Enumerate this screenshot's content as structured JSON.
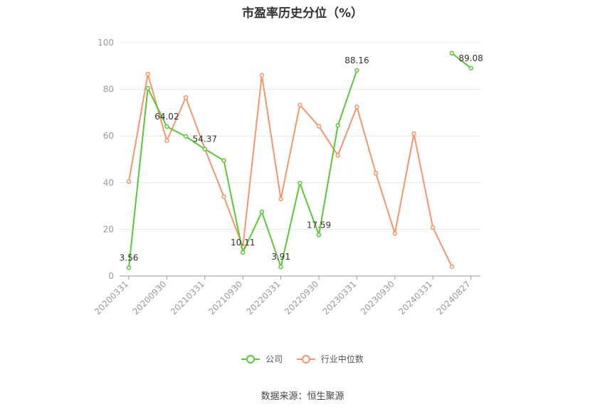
{
  "chart_data": {
    "type": "line",
    "title": "市盈率历史分位（%）",
    "ylim": [
      0,
      100
    ],
    "yticks": [
      0,
      20,
      40,
      60,
      80,
      100
    ],
    "x": [
      "20200331",
      "20200630",
      "20200930",
      "20201231",
      "20210331",
      "20210630",
      "20210930",
      "20211231",
      "20220331",
      "20220630",
      "20220930",
      "20221231",
      "20230331",
      "20230630",
      "20230930",
      "20231231",
      "20240331",
      "20240630",
      "20240827"
    ],
    "xtick_labels": [
      "20200331",
      "20200930",
      "20210331",
      "20210930",
      "20220331",
      "20220930",
      "20230331",
      "20230930",
      "20240331",
      "20240827"
    ],
    "series": [
      {
        "name": "公司",
        "color": "#5ac737",
        "values": [
          3.56,
          80.5,
          64.02,
          59.8,
          54.37,
          49.5,
          10.11,
          27.5,
          3.91,
          39.8,
          17.59,
          64.5,
          88.16,
          null,
          null,
          null,
          null,
          95.5,
          89.08
        ],
        "labels": [
          "3.56",
          null,
          "64.02",
          null,
          "54.37",
          null,
          "10.11",
          null,
          "3.91",
          null,
          "17.59",
          null,
          "88.16",
          null,
          null,
          null,
          null,
          null,
          "89.08"
        ]
      },
      {
        "name": "行业中位数",
        "color": "#f5956b",
        "values": [
          40.5,
          86.5,
          58.0,
          76.5,
          54.5,
          34.0,
          12.5,
          86.0,
          33.0,
          73.3,
          64.2,
          51.7,
          72.5,
          44.0,
          18.2,
          61.0,
          20.8,
          4.0,
          null
        ],
        "labels": []
      }
    ],
    "grid": "horizontal",
    "legend_position": "bottom",
    "source": "数据来源：恒生聚源"
  }
}
